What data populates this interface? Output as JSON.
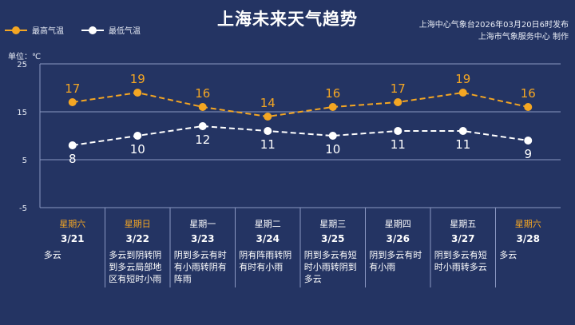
{
  "title": "上海未来天气趋势",
  "source_line1": "上海中心气象台2026年03月20日6时发布",
  "source_line2": "上海市气象服务中心  制作",
  "unit_label": "单位：℃",
  "colors": {
    "high": "#f4a623",
    "low": "#ffffff",
    "weekend": "#f4a623",
    "weekday": "#ffffff",
    "background": "#243463",
    "grid": "#8a97c2"
  },
  "chart_data": {
    "type": "line",
    "legend_position": "top-left",
    "ylim": [
      -5,
      25
    ],
    "yticks": [
      25,
      15,
      5,
      -5
    ],
    "categories": [
      "3/21",
      "3/22",
      "3/23",
      "3/24",
      "3/25",
      "3/26",
      "3/27",
      "3/28"
    ],
    "series": [
      {
        "name": "最高气温",
        "color": "#f4a623",
        "dashed": true,
        "values": [
          17,
          19,
          16,
          14,
          16,
          17,
          19,
          16
        ]
      },
      {
        "name": "最低气温",
        "color": "#ffffff",
        "dashed": true,
        "values": [
          8,
          10,
          12,
          11,
          10,
          11,
          11,
          9
        ]
      }
    ]
  },
  "days": [
    {
      "weekday": "星期六",
      "date": "3/21",
      "weekend": true,
      "weather": "多云"
    },
    {
      "weekday": "星期日",
      "date": "3/22",
      "weekend": true,
      "weather": "多云到阴转阴到多云局部地区有短时小雨"
    },
    {
      "weekday": "星期一",
      "date": "3/23",
      "weekend": false,
      "weather": "阴到多云有时有小雨转阴有阵雨"
    },
    {
      "weekday": "星期二",
      "date": "3/24",
      "weekend": false,
      "weather": "阴有阵雨转阴有时有小雨"
    },
    {
      "weekday": "星期三",
      "date": "3/25",
      "weekend": false,
      "weather": "阴到多云有短时小雨转阴到多云"
    },
    {
      "weekday": "星期四",
      "date": "3/26",
      "weekend": false,
      "weather": "阴到多云有时有小雨"
    },
    {
      "weekday": "星期五",
      "date": "3/27",
      "weekend": false,
      "weather": "阴到多云有短时小雨转多云"
    },
    {
      "weekday": "星期六",
      "date": "3/28",
      "weekend": true,
      "weather": "多云"
    }
  ]
}
